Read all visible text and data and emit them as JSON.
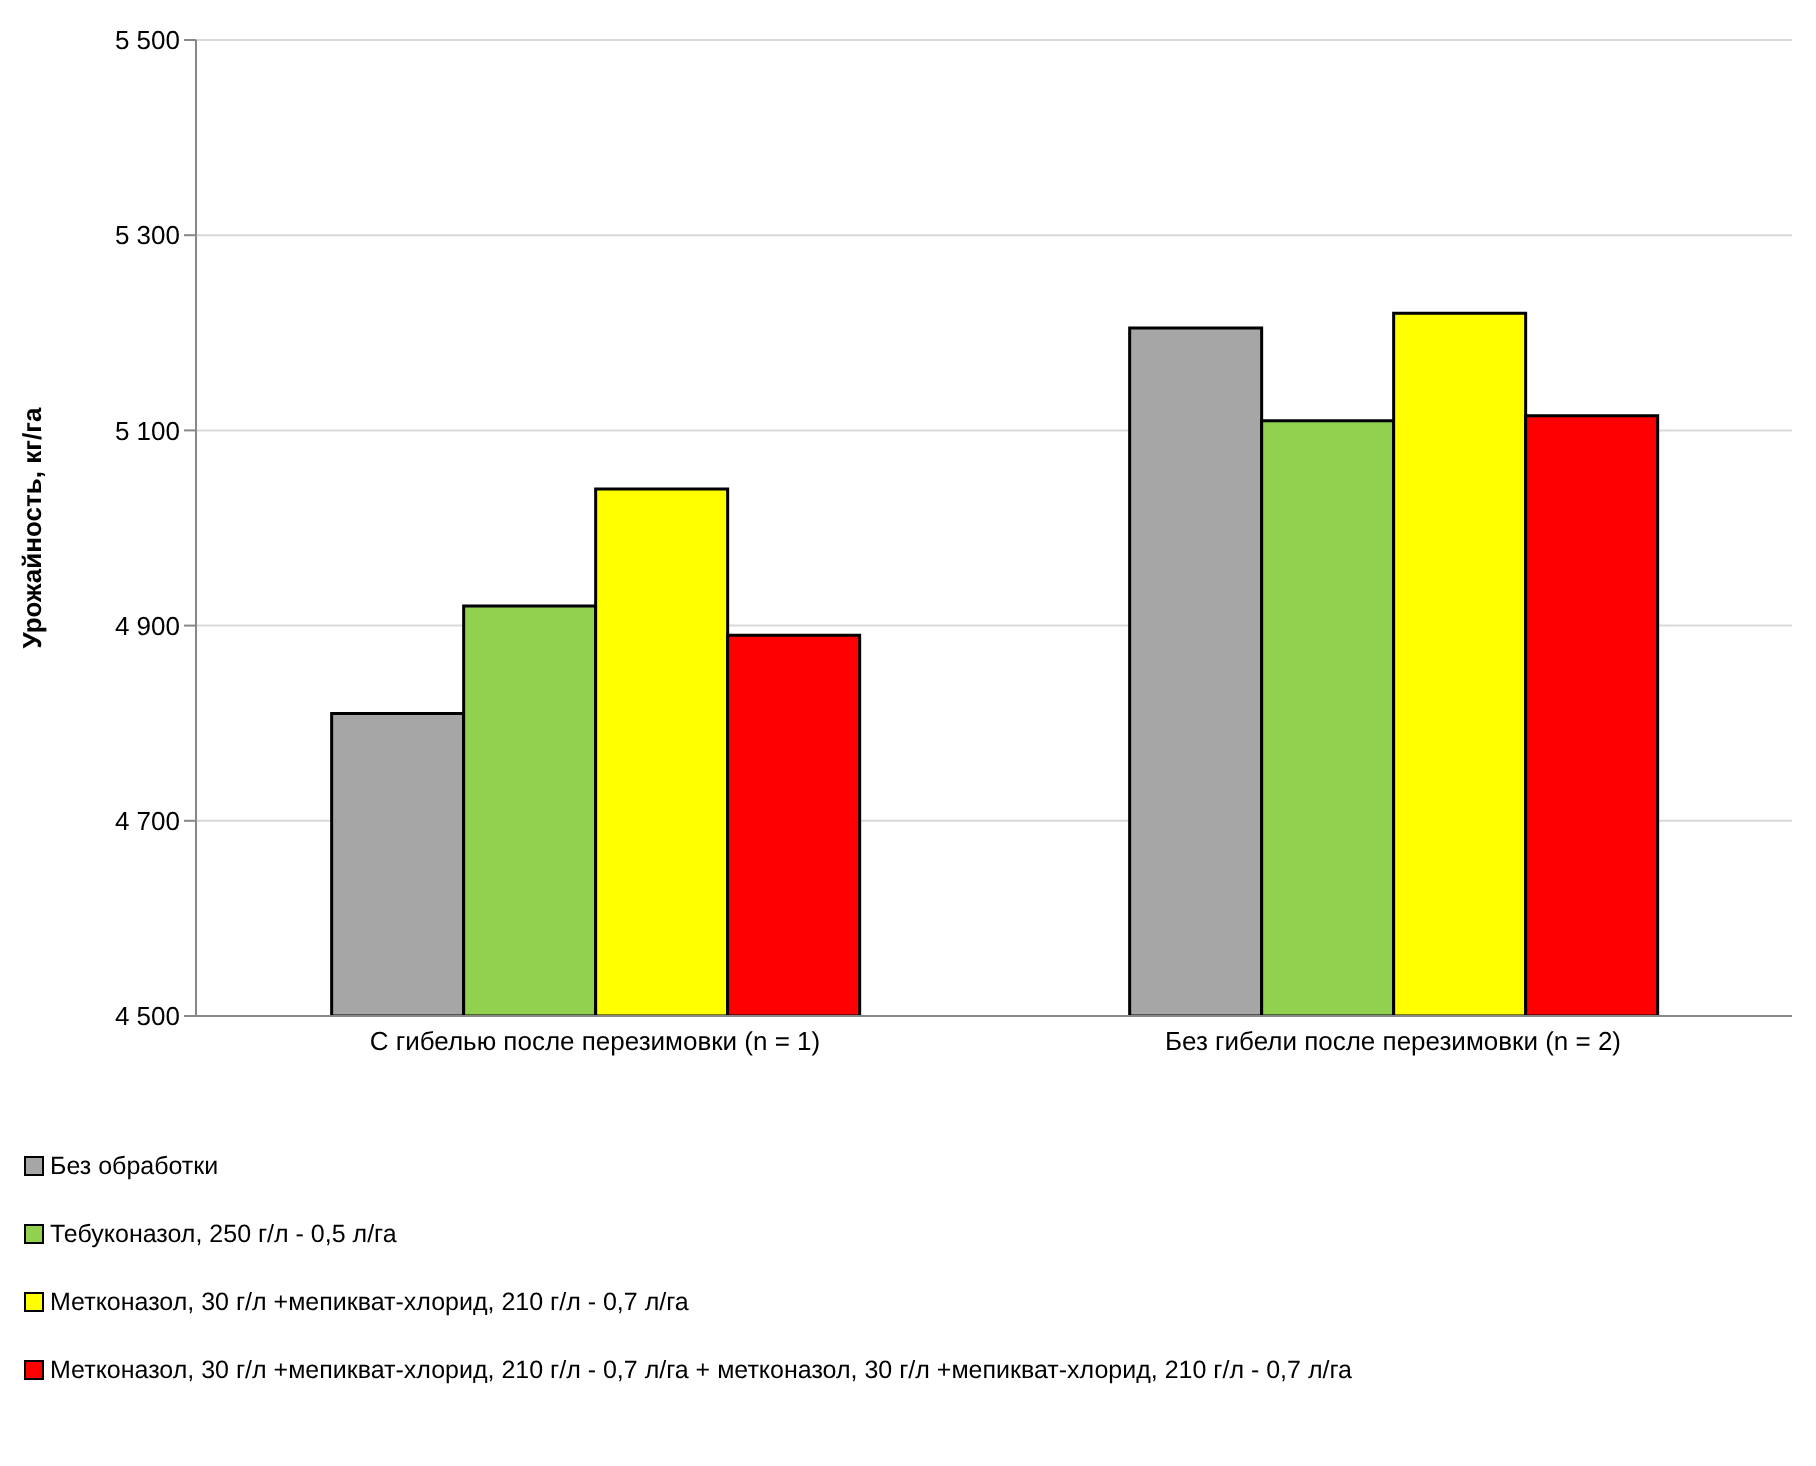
{
  "chart_data": {
    "type": "bar",
    "ylabel": "Урожайность, кг/га",
    "categories": [
      "С гибелью после перезимовки (n = 1)",
      "Без гибели после перезимовки (n = 2)"
    ],
    "series": [
      {
        "name": "Без обработки",
        "color": "#a6a6a6",
        "values": [
          4810,
          5205
        ]
      },
      {
        "name": "Тебуконазол, 250 г/л - 0,5 л/га",
        "color": "#92d050",
        "values": [
          4920,
          5110
        ]
      },
      {
        "name": "Метконазол, 30 г/л +мепикват-хлорид, 210 г/л - 0,7 л/га",
        "color": "#ffff00",
        "values": [
          5040,
          5220
        ]
      },
      {
        "name": "Метконазол, 30 г/л +мепикват-хлорид, 210 г/л - 0,7 л/га + метконазол, 30 г/л +мепикват-хлорид, 210 г/л - 0,7 л/га",
        "color": "#ff0000",
        "values": [
          4890,
          5115
        ]
      }
    ],
    "ylim": [
      4500,
      5500
    ],
    "yticks": [
      {
        "value": 4500,
        "label": "4 500"
      },
      {
        "value": 4700,
        "label": "4 700"
      },
      {
        "value": 4900,
        "label": "4 900"
      },
      {
        "value": 5100,
        "label": "5 100"
      },
      {
        "value": 5300,
        "label": "5 300"
      },
      {
        "value": 5500,
        "label": "5 500"
      }
    ],
    "grid": "y",
    "legend": "bottom"
  }
}
